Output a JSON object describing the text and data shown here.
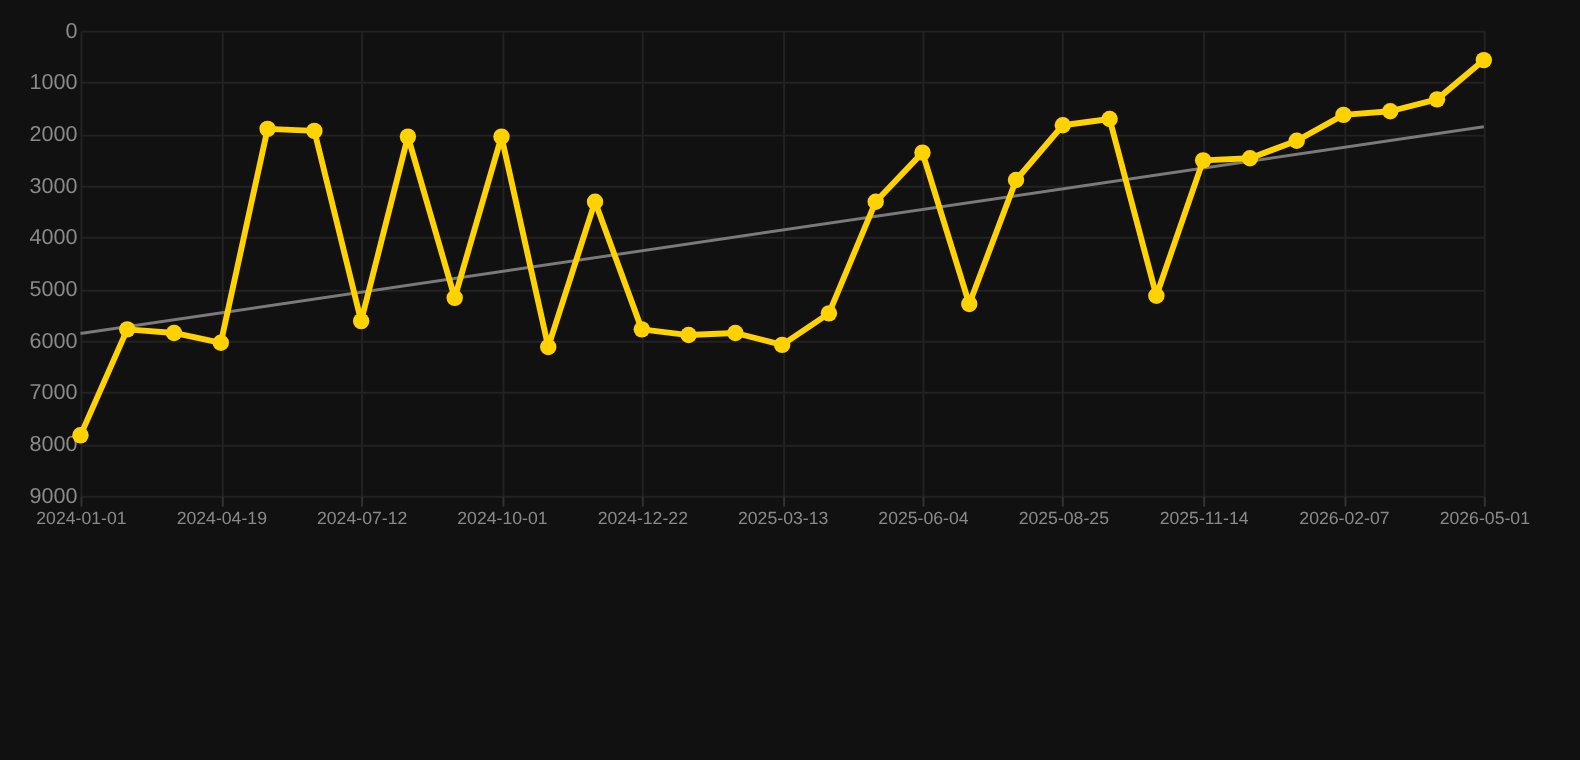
{
  "chart_data": {
    "type": "line",
    "categories": [
      "2024-01-01",
      null,
      null,
      "2024-04-19",
      null,
      null,
      "2024-07-12",
      null,
      null,
      "2024-10-01",
      null,
      null,
      "2024-12-22",
      null,
      null,
      "2025-03-13",
      null,
      null,
      "2025-06-04",
      null,
      null,
      "2025-08-25",
      null,
      null,
      "2025-11-14",
      null,
      null,
      "2026-02-07",
      null,
      null,
      "2026-05-01"
    ],
    "series": [
      {
        "color": "#ffd200",
        "marker": "circle",
        "values": [
          7830,
          5780,
          5850,
          6040,
          1900,
          1940,
          5620,
          2050,
          5170,
          2050,
          6120,
          3310,
          5780,
          5890,
          5850,
          6080,
          5470,
          3310,
          2360,
          5290,
          2890,
          1830,
          1710,
          5130,
          2510,
          2470,
          2130,
          1630,
          1560,
          1330,
          570
        ]
      },
      {
        "type": "line",
        "color": "#7a7a7a",
        "marker": "none",
        "values": [
          5860,
          null,
          null,
          null,
          null,
          null,
          null,
          null,
          null,
          null,
          null,
          null,
          null,
          null,
          null,
          null,
          null,
          null,
          null,
          null,
          null,
          null,
          null,
          null,
          null,
          null,
          null,
          null,
          null,
          null,
          1860
        ]
      }
    ],
    "ylim": [
      9000,
      0
    ],
    "yticks": [
      0,
      1000,
      2000,
      3000,
      4000,
      5000,
      6000,
      7000,
      8000,
      9000
    ],
    "grid": true
  }
}
